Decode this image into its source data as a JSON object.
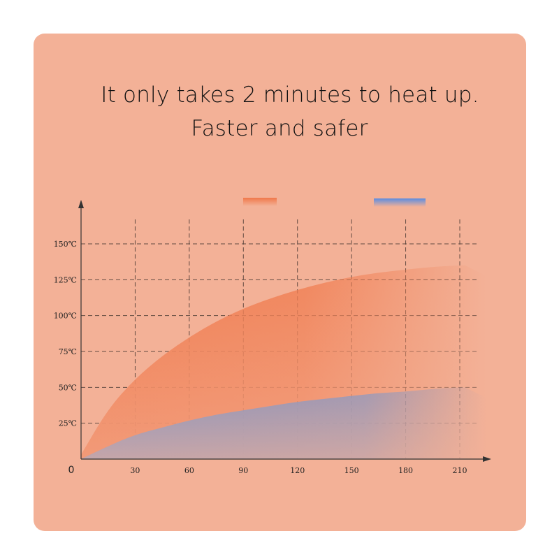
{
  "headline": {
    "line1": "It only takes 2 minutes to heat up.",
    "line2": "Faster and safer"
  },
  "colors": {
    "background": "#f3b197",
    "orange_series": "#f0784a",
    "blue_series": "#7f97c9",
    "grid": "#4a3a34",
    "axis": "#333333"
  },
  "chart_data": {
    "type": "area",
    "title": "",
    "xlabel": "",
    "ylabel": "",
    "origin_label": "0",
    "x_ticks": [
      30,
      60,
      90,
      120,
      150,
      180,
      210
    ],
    "x_tick_labels": [
      "30",
      "60",
      "90",
      "120",
      "150",
      "180",
      "210"
    ],
    "y_ticks": [
      25,
      50,
      75,
      100,
      125,
      150
    ],
    "y_tick_labels": [
      "25℃",
      "50℃",
      "75℃",
      "100℃",
      "125℃",
      "150℃"
    ],
    "xlim": [
      0,
      225
    ],
    "ylim": [
      0,
      165
    ],
    "grid": true,
    "legend": {
      "placement": "top-center",
      "entries": [
        {
          "series": 0,
          "label": ""
        },
        {
          "series": 1,
          "label": ""
        }
      ]
    },
    "series": [
      {
        "color": "#f0784a",
        "x": [
          0,
          15,
          30,
          45,
          60,
          75,
          90,
          105,
          120,
          135,
          150,
          165,
          180,
          195,
          210,
          213
        ],
        "y": [
          3,
          35,
          56,
          72,
          85,
          96,
          105,
          112,
          118,
          123,
          127,
          130,
          132,
          134,
          135,
          135
        ]
      },
      {
        "color": "#7f97c9",
        "x": [
          0,
          15,
          30,
          45,
          60,
          75,
          90,
          105,
          120,
          135,
          150,
          165,
          180,
          195,
          210,
          213
        ],
        "y": [
          0,
          9,
          17,
          22,
          27,
          31,
          34,
          37,
          40,
          42,
          44,
          46,
          47,
          49,
          50,
          50
        ]
      }
    ]
  }
}
